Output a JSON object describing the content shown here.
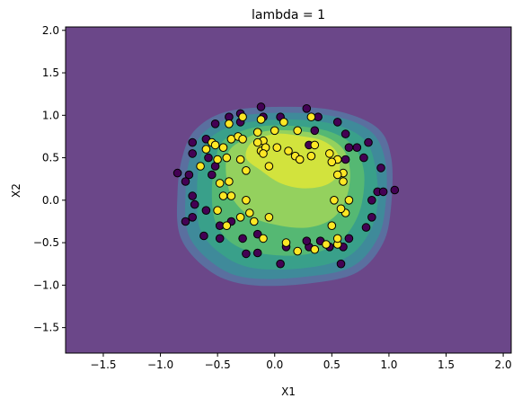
{
  "chart_data": {
    "type": "scatter",
    "title": "lambda = 1",
    "xlabel": "X1",
    "ylabel": "X2",
    "xlim": [
      -1.83,
      2.07
    ],
    "ylim": [
      -1.8,
      2.04
    ],
    "xticks": [
      -1.5,
      -1.0,
      -0.5,
      0.0,
      0.5,
      1.0,
      1.5,
      2.0
    ],
    "xtick_labels": [
      "−1.5",
      "−1.0",
      "−0.5",
      "0.0",
      "0.5",
      "1.0",
      "1.5",
      "2.0"
    ],
    "yticks": [
      -1.5,
      -1.0,
      -0.5,
      0.0,
      0.5,
      1.0,
      1.5,
      2.0
    ],
    "ytick_labels": [
      "−1.5",
      "−1.0",
      "−0.5",
      "0.0",
      "0.5",
      "1.0",
      "1.5",
      "2.0"
    ],
    "grid": false,
    "background_color": "#6b4789",
    "contour_colors": [
      "#6b4789",
      "#5a6f9f",
      "#3f8a9a",
      "#39a08a",
      "#55b873",
      "#94d15e",
      "#d2e33d"
    ],
    "contour_levels": [
      {
        "level": 1,
        "points": [
          [
            -0.68,
            0.85
          ],
          [
            -0.4,
            1.05
          ],
          [
            0.1,
            1.1
          ],
          [
            0.55,
            1.05
          ],
          [
            0.9,
            0.85
          ],
          [
            1.02,
            0.5
          ],
          [
            1.02,
            -0.05
          ],
          [
            0.95,
            -0.5
          ],
          [
            0.72,
            -0.85
          ],
          [
            0.3,
            -0.98
          ],
          [
            -0.2,
            -1.0
          ],
          [
            -0.55,
            -0.85
          ],
          [
            -0.82,
            -0.45
          ],
          [
            -0.85,
            0.1
          ],
          [
            -0.8,
            0.55
          ]
        ]
      },
      {
        "level": 2,
        "points": [
          [
            -0.62,
            0.8
          ],
          [
            -0.35,
            0.98
          ],
          [
            0.1,
            1.03
          ],
          [
            0.55,
            0.98
          ],
          [
            0.85,
            0.8
          ],
          [
            0.97,
            0.45
          ],
          [
            0.97,
            -0.05
          ],
          [
            0.9,
            -0.45
          ],
          [
            0.68,
            -0.78
          ],
          [
            0.28,
            -0.9
          ],
          [
            -0.2,
            -0.92
          ],
          [
            -0.5,
            -0.78
          ],
          [
            -0.75,
            -0.42
          ],
          [
            -0.78,
            0.1
          ],
          [
            -0.74,
            0.5
          ]
        ]
      },
      {
        "level": 3,
        "points": [
          [
            -0.55,
            0.75
          ],
          [
            -0.3,
            0.9
          ],
          [
            0.1,
            0.95
          ],
          [
            0.5,
            0.9
          ],
          [
            0.78,
            0.72
          ],
          [
            0.88,
            0.4
          ],
          [
            0.9,
            -0.05
          ],
          [
            0.82,
            -0.4
          ],
          [
            0.62,
            -0.68
          ],
          [
            0.25,
            -0.8
          ],
          [
            -0.18,
            -0.8
          ],
          [
            -0.45,
            -0.65
          ],
          [
            -0.65,
            -0.35
          ],
          [
            -0.68,
            0.1
          ],
          [
            -0.65,
            0.5
          ]
        ]
      },
      {
        "level": 4,
        "points": [
          [
            -0.45,
            0.7
          ],
          [
            -0.2,
            0.85
          ],
          [
            0.1,
            0.88
          ],
          [
            0.45,
            0.82
          ],
          [
            0.68,
            0.65
          ],
          [
            0.78,
            0.35
          ],
          [
            0.76,
            -0.05
          ],
          [
            0.66,
            -0.35
          ],
          [
            0.5,
            -0.55
          ],
          [
            0.2,
            -0.65
          ],
          [
            -0.15,
            -0.62
          ],
          [
            -0.38,
            -0.5
          ],
          [
            -0.52,
            -0.25
          ],
          [
            -0.55,
            0.1
          ],
          [
            -0.52,
            0.45
          ]
        ]
      },
      {
        "level": 5,
        "points": [
          [
            -0.35,
            0.65
          ],
          [
            -0.12,
            0.8
          ],
          [
            0.15,
            0.82
          ],
          [
            0.42,
            0.76
          ],
          [
            0.6,
            0.6
          ],
          [
            0.66,
            0.32
          ],
          [
            0.62,
            0.0
          ],
          [
            0.5,
            -0.22
          ],
          [
            0.3,
            -0.32
          ],
          [
            0.05,
            -0.3
          ],
          [
            -0.2,
            -0.2
          ],
          [
            -0.36,
            0.0
          ],
          [
            -0.42,
            0.25
          ],
          [
            -0.42,
            0.5
          ]
        ]
      },
      {
        "level": 6,
        "points": [
          [
            -0.2,
            0.68
          ],
          [
            0.0,
            0.78
          ],
          [
            0.2,
            0.76
          ],
          [
            0.42,
            0.7
          ],
          [
            0.55,
            0.55
          ],
          [
            0.56,
            0.32
          ],
          [
            0.45,
            0.18
          ],
          [
            0.25,
            0.14
          ],
          [
            0.05,
            0.2
          ],
          [
            -0.12,
            0.35
          ],
          [
            -0.25,
            0.5
          ]
        ]
      }
    ],
    "series": [
      {
        "class": 0,
        "color": "#440154",
        "points": [
          [
            -0.3,
            1.02
          ],
          [
            -0.4,
            0.98
          ],
          [
            -0.1,
            0.98
          ],
          [
            0.05,
            0.98
          ],
          [
            0.28,
            1.08
          ],
          [
            -0.12,
            1.1
          ],
          [
            -0.52,
            0.9
          ],
          [
            -0.3,
            0.92
          ],
          [
            -0.72,
            0.68
          ],
          [
            -0.6,
            0.72
          ],
          [
            -0.72,
            0.55
          ],
          [
            -0.85,
            0.32
          ],
          [
            -0.75,
            0.3
          ],
          [
            -0.78,
            0.22
          ],
          [
            -0.58,
            0.5
          ],
          [
            -0.55,
            0.3
          ],
          [
            -0.52,
            0.4
          ],
          [
            -0.72,
            0.05
          ],
          [
            -0.7,
            -0.05
          ],
          [
            -0.6,
            -0.12
          ],
          [
            -0.72,
            -0.2
          ],
          [
            -0.78,
            -0.25
          ],
          [
            -0.62,
            -0.42
          ],
          [
            -0.48,
            -0.3
          ],
          [
            -0.48,
            -0.45
          ],
          [
            -0.38,
            -0.25
          ],
          [
            -0.28,
            -0.45
          ],
          [
            -0.25,
            -0.63
          ],
          [
            -0.15,
            -0.4
          ],
          [
            -0.15,
            -0.62
          ],
          [
            0.1,
            -0.55
          ],
          [
            0.05,
            -0.75
          ],
          [
            0.3,
            -0.55
          ],
          [
            0.28,
            -0.48
          ],
          [
            0.4,
            -0.48
          ],
          [
            0.48,
            -0.55
          ],
          [
            0.6,
            -0.55
          ],
          [
            0.58,
            -0.75
          ],
          [
            0.65,
            -0.45
          ],
          [
            0.8,
            -0.32
          ],
          [
            0.85,
            -0.2
          ],
          [
            0.85,
            0.0
          ],
          [
            0.9,
            0.1
          ],
          [
            0.95,
            0.1
          ],
          [
            1.05,
            0.12
          ],
          [
            0.93,
            0.38
          ],
          [
            0.78,
            0.5
          ],
          [
            0.82,
            0.68
          ],
          [
            0.65,
            0.62
          ],
          [
            0.62,
            0.78
          ],
          [
            0.72,
            0.62
          ],
          [
            0.55,
            0.92
          ],
          [
            0.38,
            0.98
          ],
          [
            0.3,
            0.65
          ],
          [
            0.62,
            0.48
          ],
          [
            0.35,
            0.82
          ]
        ]
      },
      {
        "class": 1,
        "color": "#fde725",
        "points": [
          [
            -0.28,
            0.98
          ],
          [
            -0.4,
            0.9
          ],
          [
            -0.12,
            0.95
          ],
          [
            0.08,
            0.92
          ],
          [
            0.32,
            0.98
          ],
          [
            -0.45,
            0.62
          ],
          [
            -0.38,
            0.72
          ],
          [
            -0.32,
            0.75
          ],
          [
            -0.15,
            0.8
          ],
          [
            -0.1,
            0.7
          ],
          [
            0.0,
            0.82
          ],
          [
            0.2,
            0.82
          ],
          [
            -0.55,
            0.68
          ],
          [
            -0.5,
            0.48
          ],
          [
            -0.42,
            0.5
          ],
          [
            -0.3,
            0.48
          ],
          [
            -0.12,
            0.58
          ],
          [
            -0.08,
            0.62
          ],
          [
            -0.15,
            0.68
          ],
          [
            -0.1,
            0.55
          ],
          [
            -0.6,
            0.6
          ],
          [
            -0.65,
            0.4
          ],
          [
            -0.52,
            0.65
          ],
          [
            -0.28,
            0.72
          ],
          [
            0.02,
            0.62
          ],
          [
            0.12,
            0.58
          ],
          [
            0.18,
            0.52
          ],
          [
            0.22,
            0.48
          ],
          [
            0.35,
            0.65
          ],
          [
            0.32,
            0.52
          ],
          [
            0.48,
            0.55
          ],
          [
            0.55,
            0.48
          ],
          [
            0.6,
            0.32
          ],
          [
            0.5,
            0.45
          ],
          [
            0.55,
            0.3
          ],
          [
            0.6,
            0.22
          ],
          [
            -0.48,
            0.2
          ],
          [
            -0.4,
            0.22
          ],
          [
            -0.25,
            0.35
          ],
          [
            -0.45,
            0.05
          ],
          [
            -0.38,
            0.05
          ],
          [
            -0.25,
            0.0
          ],
          [
            -0.05,
            0.4
          ],
          [
            -0.5,
            -0.12
          ],
          [
            -0.42,
            -0.3
          ],
          [
            -0.3,
            -0.2
          ],
          [
            -0.22,
            -0.15
          ],
          [
            -0.18,
            -0.25
          ],
          [
            -0.05,
            -0.2
          ],
          [
            -0.1,
            -0.45
          ],
          [
            0.1,
            -0.5
          ],
          [
            0.2,
            -0.6
          ],
          [
            0.35,
            -0.58
          ],
          [
            0.45,
            -0.52
          ],
          [
            0.55,
            -0.52
          ],
          [
            0.62,
            -0.15
          ],
          [
            0.58,
            -0.1
          ],
          [
            0.65,
            0.0
          ],
          [
            0.52,
            0.0
          ],
          [
            0.5,
            -0.3
          ],
          [
            0.55,
            -0.45
          ]
        ]
      }
    ]
  }
}
